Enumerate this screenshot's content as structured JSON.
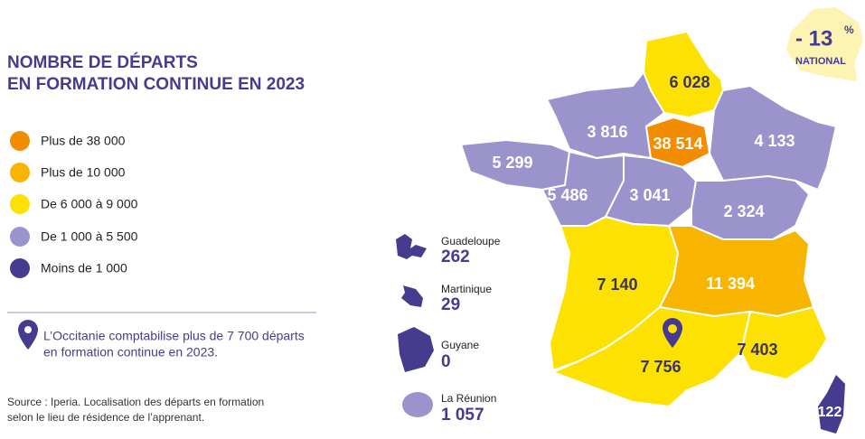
{
  "header": {
    "title_lines": [
      "NOMBRE DE DÉPARTS",
      "EN FORMATION CONTINUE EN 2023"
    ]
  },
  "legend": [
    "Plus de 38 000",
    "Plus de 10 000",
    "De 6 000 à 9 000",
    "De 1 000 à 5 500",
    "Moins de 1 000"
  ],
  "callout": {
    "lines": [
      "L’Occitanie comptabilise plus de 7 700 départs",
      "en formation continue en 2023."
    ]
  },
  "source": {
    "lines": [
      "Source : Iperia. Localisation des départs en formation",
      "selon le lieu de résidence de l’apprenant."
    ]
  },
  "national": {
    "value": "- 13",
    "unit": "%",
    "label": "NATIONAL"
  },
  "regions": [
    "6 028",
    "38 514",
    "4 133",
    "3 816",
    "5 299",
    "5 486",
    "3 041",
    "2 324",
    "7 140",
    "11 394",
    "7 756",
    "7 403",
    "122"
  ],
  "overseas": [
    {
      "name": "Guadeloupe",
      "value": "262"
    },
    {
      "name": "Martinique",
      "value": "29"
    },
    {
      "name": "Guyane",
      "value": "0"
    },
    {
      "name": "La Réunion",
      "value": "1 057"
    }
  ]
}
